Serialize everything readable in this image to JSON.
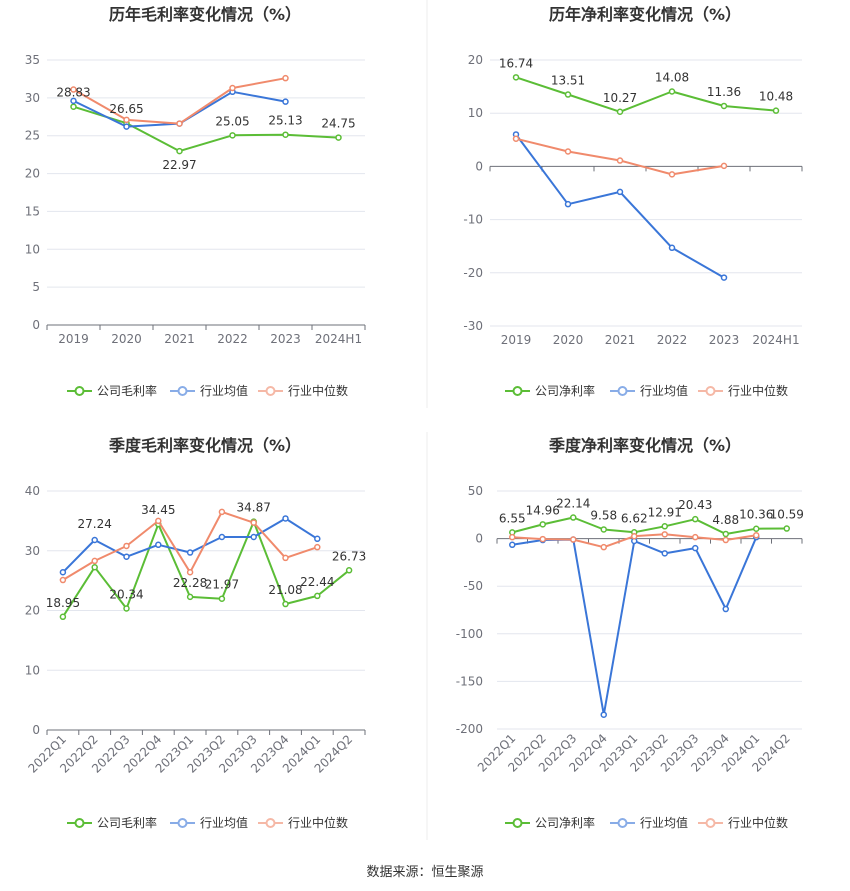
{
  "source": "数据来源：恒生聚源",
  "colors": {
    "grid": "#e3e6ee",
    "axis": "#6e7079"
  },
  "chart_data": [
    {
      "type": "line",
      "title": "历年毛利率变化情况（%）",
      "categories": [
        "2019",
        "2020",
        "2021",
        "2022",
        "2023",
        "2024H1"
      ],
      "ylim": [
        0,
        35
      ],
      "yticks": [
        0,
        5,
        10,
        15,
        20,
        25,
        30,
        35
      ],
      "grid": true,
      "legend": "bottom",
      "series": [
        {
          "name": "公司毛利率",
          "color": "#5bbd36",
          "values": [
            28.83,
            26.65,
            22.97,
            25.05,
            25.13,
            24.75
          ]
        },
        {
          "name": "行业均值",
          "color": "#3a76d8",
          "values": [
            29.6,
            26.2,
            26.6,
            30.8,
            29.5,
            null
          ]
        },
        {
          "name": "行业中位数",
          "color": "#f08a6c",
          "values": [
            31.1,
            27.1,
            26.6,
            31.3,
            32.6,
            null
          ]
        }
      ]
    },
    {
      "type": "line",
      "title": "历年净利率变化情况（%）",
      "categories": [
        "2019",
        "2020",
        "2021",
        "2022",
        "2023",
        "2024H1"
      ],
      "ylim": [
        -30,
        20
      ],
      "yticks": [
        -30,
        -20,
        -10,
        0,
        10,
        20
      ],
      "grid": true,
      "legend": "bottom",
      "series": [
        {
          "name": "公司净利率",
          "color": "#5bbd36",
          "values": [
            16.74,
            13.51,
            10.27,
            14.08,
            11.36,
            10.48
          ]
        },
        {
          "name": "行业均值",
          "color": "#3a76d8",
          "values": [
            6.0,
            -7.1,
            -4.8,
            -15.3,
            -20.9,
            null
          ]
        },
        {
          "name": "行业中位数",
          "color": "#f08a6c",
          "values": [
            5.2,
            2.8,
            1.1,
            -1.5,
            0.1,
            null
          ]
        }
      ]
    },
    {
      "type": "line",
      "title": "季度毛利率变化情况（%）",
      "categories": [
        "2022Q1",
        "2022Q2",
        "2022Q3",
        "2022Q4",
        "2023Q1",
        "2023Q2",
        "2023Q3",
        "2023Q4",
        "2024Q1",
        "2024Q2"
      ],
      "ylim": [
        0,
        40
      ],
      "yticks": [
        0,
        10,
        20,
        30,
        40
      ],
      "grid": true,
      "legend": "bottom",
      "series": [
        {
          "name": "公司毛利率",
          "color": "#5bbd36",
          "values": [
            18.95,
            27.24,
            20.34,
            34.45,
            22.28,
            21.97,
            34.87,
            21.08,
            22.44,
            26.73
          ]
        },
        {
          "name": "行业均值",
          "color": "#3a76d8",
          "values": [
            26.4,
            31.8,
            29.0,
            31.0,
            29.7,
            32.3,
            32.3,
            35.4,
            32.0,
            null
          ]
        },
        {
          "name": "行业中位数",
          "color": "#f08a6c",
          "values": [
            25.1,
            28.3,
            30.8,
            35.0,
            26.4,
            36.5,
            34.7,
            28.8,
            30.6,
            null
          ]
        }
      ]
    },
    {
      "type": "line",
      "title": "季度净利率变化情况（%）",
      "categories": [
        "2022Q1",
        "2022Q2",
        "2022Q3",
        "2022Q4",
        "2023Q1",
        "2023Q2",
        "2023Q3",
        "2023Q4",
        "2024Q1",
        "2024Q2"
      ],
      "ylim": [
        -200,
        50
      ],
      "yticks": [
        -200,
        -150,
        -100,
        -50,
        0,
        50
      ],
      "grid": true,
      "legend": "bottom",
      "series": [
        {
          "name": "公司净利率",
          "color": "#5bbd36",
          "values": [
            6.55,
            14.96,
            22.14,
            9.58,
            6.62,
            12.91,
            20.43,
            4.88,
            10.36,
            10.59
          ]
        },
        {
          "name": "行业均值",
          "color": "#3a76d8",
          "values": [
            -6.5,
            -1.5,
            -1.0,
            -185.0,
            -2.5,
            -15.5,
            -10.0,
            -74.0,
            1.5,
            null
          ]
        },
        {
          "name": "行业中位数",
          "color": "#f08a6c",
          "values": [
            1.5,
            -0.5,
            -1.0,
            -9.0,
            2.5,
            4.5,
            1.5,
            -1.5,
            3.5,
            null
          ]
        }
      ]
    }
  ]
}
